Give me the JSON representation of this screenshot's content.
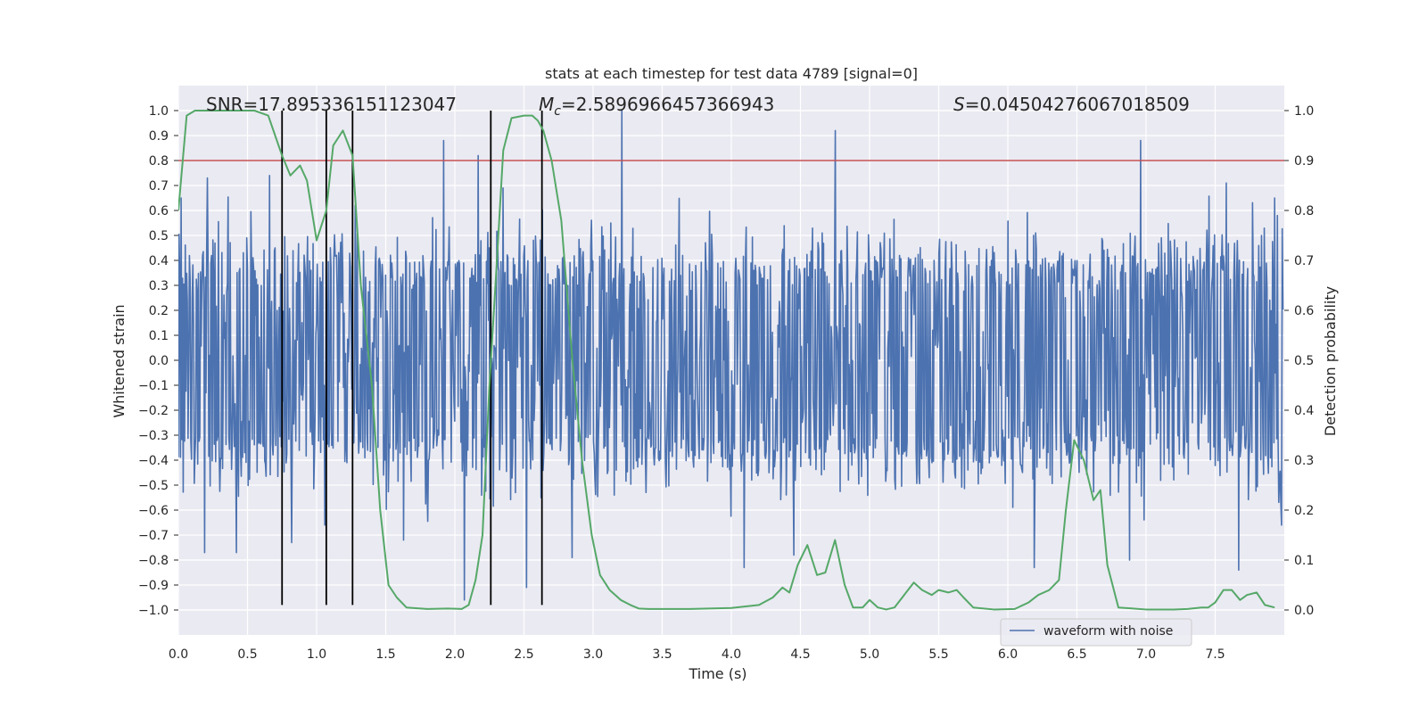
{
  "chart_data": {
    "type": "line",
    "title": "stats at each timestep for test data 4789 [signal=0]",
    "xlabel": "Time (s)",
    "ylabel": "Whitened strain",
    "y2label": "Detection probability",
    "xlim": [
      0.0,
      8.0
    ],
    "ylim": [
      -1.1,
      1.1
    ],
    "y2lim": [
      -0.05,
      1.05
    ],
    "xticks": [
      0.0,
      0.5,
      1.0,
      1.5,
      2.0,
      2.5,
      3.0,
      3.5,
      4.0,
      4.5,
      5.0,
      5.5,
      6.0,
      6.5,
      7.0,
      7.5
    ],
    "xtick_labels": [
      "0.0",
      "0.5",
      "1.0",
      "1.5",
      "2.0",
      "2.5",
      "3.0",
      "3.5",
      "4.0",
      "4.5",
      "5.0",
      "5.5",
      "6.0",
      "6.5",
      "7.0",
      "7.5"
    ],
    "yticks": [
      1.0,
      0.9,
      0.8,
      0.7,
      0.6,
      0.5,
      0.4,
      0.3,
      0.2,
      0.1,
      0.0,
      -0.1,
      -0.2,
      -0.3,
      -0.4,
      -0.5,
      -0.6,
      -0.7,
      -0.8,
      -0.9,
      -1.0
    ],
    "ytick_labels": [
      "1.0",
      "0.9",
      "0.8",
      "0.7",
      "0.6",
      "0.5",
      "0.4",
      "0.3",
      "0.2",
      "0.1",
      "0.0",
      "−0.1",
      "−0.2",
      "−0.3",
      "−0.4",
      "−0.5",
      "−0.6",
      "−0.7",
      "−0.8",
      "−0.9",
      "−1.0"
    ],
    "y2ticks": [
      1.0,
      0.9,
      0.8,
      0.7,
      0.6,
      0.5,
      0.4,
      0.3,
      0.2,
      0.1,
      0.0
    ],
    "y2tick_labels": [
      "1.0",
      "0.9",
      "0.8",
      "0.7",
      "0.6",
      "0.5",
      "0.4",
      "0.3",
      "0.2",
      "0.1",
      "0.0"
    ],
    "grid": true,
    "legend": {
      "position": "bottom-right",
      "entries": [
        "waveform with noise"
      ]
    },
    "stats": {
      "snr": "SNR=17.895336151123047",
      "mc_symbol": "M",
      "mc_sub": "c",
      "mc_value": "=2.5896966457366943",
      "s_symbol": "S",
      "s_value": "=0.04504276067018509"
    },
    "threshold": {
      "axis": "left",
      "value": 0.8,
      "color": "#c44e52"
    },
    "vertical_lines": [
      0.75,
      1.07,
      1.26,
      2.26,
      2.63
    ],
    "vertical_line_range": [
      -0.98,
      1.0
    ],
    "series": [
      {
        "name": "waveform with noise",
        "axis": "left",
        "color": "#4c72b0",
        "generator": "noise",
        "sample_count": 1600,
        "x_range": [
          0.0,
          7.99
        ],
        "core_amplitude": 0.42,
        "peaks": [
          {
            "t": 0.02,
            "v": 0.65
          },
          {
            "t": 0.21,
            "v": 0.73
          },
          {
            "t": 0.66,
            "v": 0.74
          },
          {
            "t": 1.28,
            "v": 0.62
          },
          {
            "t": 1.92,
            "v": 0.88
          },
          {
            "t": 2.17,
            "v": 0.82
          },
          {
            "t": 2.35,
            "v": 0.69
          },
          {
            "t": 3.21,
            "v": 1.0
          },
          {
            "t": 4.75,
            "v": 0.92
          },
          {
            "t": 6.96,
            "v": 0.88
          },
          {
            "t": 7.58,
            "v": 0.71
          },
          {
            "t": 7.93,
            "v": 0.65
          },
          {
            "t": 0.19,
            "v": -0.77
          },
          {
            "t": 0.42,
            "v": -0.77
          },
          {
            "t": 0.82,
            "v": -0.73
          },
          {
            "t": 1.06,
            "v": -0.66
          },
          {
            "t": 1.63,
            "v": -0.72
          },
          {
            "t": 2.07,
            "v": -0.96
          },
          {
            "t": 2.52,
            "v": -0.91
          },
          {
            "t": 2.85,
            "v": -0.79
          },
          {
            "t": 4.09,
            "v": -0.83
          },
          {
            "t": 4.45,
            "v": -0.78
          },
          {
            "t": 6.19,
            "v": -0.83
          },
          {
            "t": 6.88,
            "v": -0.8
          },
          {
            "t": 7.67,
            "v": -0.84
          },
          {
            "t": 7.98,
            "v": -0.66
          }
        ]
      },
      {
        "name": "detection probability",
        "axis": "right",
        "color": "#55a868",
        "x": [
          0.0,
          0.06,
          0.12,
          0.25,
          0.4,
          0.55,
          0.65,
          0.7,
          0.75,
          0.81,
          0.88,
          0.93,
          1.0,
          1.07,
          1.12,
          1.19,
          1.26,
          1.32,
          1.4,
          1.46,
          1.52,
          1.58,
          1.65,
          1.8,
          1.95,
          2.05,
          2.1,
          2.15,
          2.2,
          2.25,
          2.3,
          2.35,
          2.41,
          2.5,
          2.56,
          2.6,
          2.64,
          2.7,
          2.77,
          2.85,
          2.92,
          2.99,
          3.05,
          3.12,
          3.2,
          3.27,
          3.33,
          3.4,
          3.7,
          4.0,
          4.2,
          4.3,
          4.37,
          4.42,
          4.48,
          4.55,
          4.62,
          4.68,
          4.75,
          4.82,
          4.88,
          4.95,
          5.0,
          5.06,
          5.12,
          5.18,
          5.25,
          5.32,
          5.38,
          5.45,
          5.5,
          5.57,
          5.63,
          5.68,
          5.75,
          5.9,
          6.05,
          6.15,
          6.22,
          6.3,
          6.37,
          6.42,
          6.48,
          6.55,
          6.62,
          6.67,
          6.72,
          6.8,
          7.0,
          7.2,
          7.3,
          7.4,
          7.45,
          7.5,
          7.56,
          7.62,
          7.68,
          7.73,
          7.8,
          7.86,
          7.93
        ],
        "y": [
          0.8,
          0.99,
          1.0,
          1.0,
          1.0,
          1.0,
          0.99,
          0.95,
          0.91,
          0.87,
          0.89,
          0.86,
          0.74,
          0.8,
          0.93,
          0.96,
          0.91,
          0.65,
          0.45,
          0.2,
          0.05,
          0.025,
          0.005,
          0.002,
          0.003,
          0.002,
          0.01,
          0.06,
          0.15,
          0.45,
          0.68,
          0.92,
          0.985,
          0.99,
          0.99,
          0.98,
          0.96,
          0.9,
          0.78,
          0.5,
          0.3,
          0.15,
          0.07,
          0.04,
          0.02,
          0.01,
          0.003,
          0.002,
          0.002,
          0.004,
          0.01,
          0.025,
          0.045,
          0.035,
          0.09,
          0.13,
          0.07,
          0.075,
          0.14,
          0.05,
          0.005,
          0.005,
          0.02,
          0.005,
          0.001,
          0.005,
          0.03,
          0.055,
          0.04,
          0.03,
          0.04,
          0.035,
          0.04,
          0.025,
          0.005,
          0.001,
          0.002,
          0.015,
          0.03,
          0.04,
          0.06,
          0.2,
          0.34,
          0.3,
          0.22,
          0.24,
          0.09,
          0.005,
          0.001,
          0.001,
          0.002,
          0.005,
          0.005,
          0.015,
          0.04,
          0.04,
          0.02,
          0.03,
          0.035,
          0.01,
          0.005
        ]
      }
    ]
  }
}
